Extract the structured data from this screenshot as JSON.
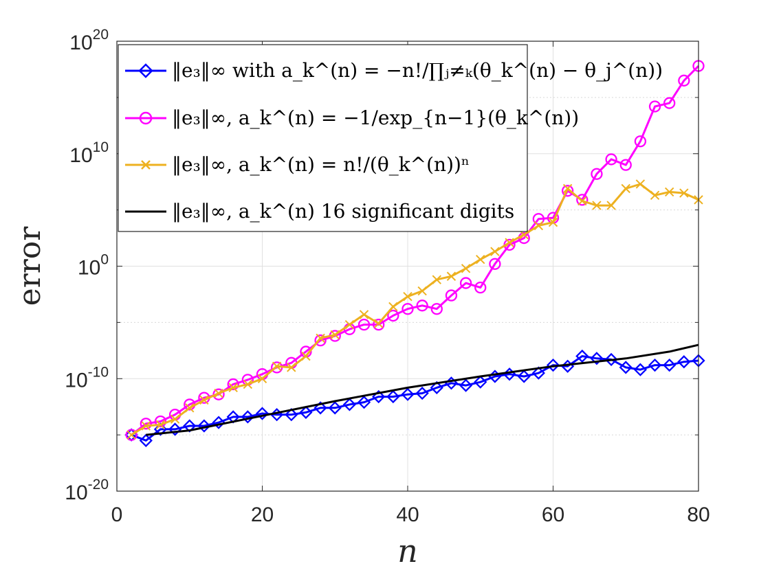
{
  "chart_data": {
    "type": "line",
    "title": "",
    "xlabel": "n",
    "ylabel": "error",
    "xlim": [
      0,
      80
    ],
    "ylim_log10": [
      -20,
      20
    ],
    "y_scale": "log",
    "grid": true,
    "legend_position": "top-left",
    "x_ticks": [
      0,
      20,
      40,
      60,
      80
    ],
    "x_tick_labels": [
      "0",
      "20",
      "40",
      "60",
      "80"
    ],
    "y_ticks_log10": [
      -20,
      -10,
      0,
      10,
      20
    ],
    "y_tick_labels": [
      {
        "base": "10",
        "exp": "-20"
      },
      {
        "base": "10",
        "exp": "-10"
      },
      {
        "base": "10",
        "exp": "0"
      },
      {
        "base": "10",
        "exp": "10"
      },
      {
        "base": "10",
        "exp": "20"
      }
    ],
    "series": [
      {
        "name": "‖e3‖∞ with a_k^(n) = −n!/∏_{j≠k}(θ_k^(n) − θ_j^(n))",
        "color": "#0000ff",
        "marker": "diamond",
        "x": [
          2,
          4,
          6,
          8,
          10,
          12,
          14,
          16,
          18,
          20,
          22,
          24,
          26,
          28,
          30,
          32,
          34,
          36,
          38,
          40,
          42,
          44,
          46,
          48,
          50,
          52,
          54,
          56,
          58,
          60,
          62,
          64,
          66,
          68,
          70,
          72,
          74,
          76,
          78,
          80
        ],
        "log10_y": [
          -15.0,
          -15.5,
          -14.5,
          -14.5,
          -14.2,
          -14.2,
          -13.9,
          -13.4,
          -13.4,
          -13.1,
          -13.2,
          -13.2,
          -13.0,
          -12.6,
          -12.6,
          -12.3,
          -12.1,
          -11.6,
          -11.6,
          -11.4,
          -11.3,
          -10.8,
          -10.4,
          -10.6,
          -10.3,
          -9.8,
          -9.6,
          -9.8,
          -9.5,
          -8.8,
          -8.9,
          -8.0,
          -8.2,
          -8.3,
          -9.0,
          -9.2,
          -8.8,
          -8.8,
          -8.5,
          -8.4
        ]
      },
      {
        "name": "‖e3‖∞, a_k^(n) = −1/exp_{n−1}(θ_k^(n))",
        "color": "#ff00ff",
        "marker": "circle",
        "x": [
          2,
          4,
          6,
          8,
          10,
          12,
          14,
          16,
          18,
          20,
          22,
          24,
          26,
          28,
          30,
          32,
          34,
          36,
          38,
          40,
          42,
          44,
          46,
          48,
          50,
          52,
          54,
          56,
          58,
          60,
          62,
          64,
          66,
          68,
          70,
          72,
          74,
          76,
          78,
          80
        ],
        "log10_y": [
          -15.0,
          -14.0,
          -13.8,
          -13.2,
          -12.3,
          -11.7,
          -11.4,
          -10.5,
          -10.1,
          -9.6,
          -9.0,
          -8.6,
          -7.6,
          -6.6,
          -6.2,
          -5.6,
          -5.2,
          -5.2,
          -4.4,
          -3.8,
          -3.5,
          -3.8,
          -2.6,
          -1.5,
          -1.9,
          0.2,
          1.9,
          2.5,
          4.2,
          4.3,
          6.7,
          5.9,
          8.2,
          9.5,
          9.0,
          11.1,
          14.2,
          14.5,
          16.5,
          17.8
        ]
      },
      {
        "name": "‖e3‖∞, a_k^(n) = n!/(θ_k^(n))^n",
        "color": "#edb120",
        "marker": "x",
        "x": [
          2,
          4,
          6,
          8,
          10,
          12,
          14,
          16,
          18,
          20,
          22,
          24,
          26,
          28,
          30,
          32,
          34,
          36,
          38,
          40,
          42,
          44,
          46,
          48,
          50,
          52,
          54,
          56,
          58,
          60,
          62,
          64,
          66,
          68,
          70,
          72,
          74,
          76,
          78,
          80
        ],
        "log10_y": [
          -15.0,
          -14.2,
          -14.1,
          -13.6,
          -12.6,
          -11.9,
          -11.3,
          -10.8,
          -10.5,
          -10.0,
          -8.9,
          -9.0,
          -8.0,
          -6.4,
          -6.1,
          -5.2,
          -4.3,
          -5.1,
          -3.6,
          -2.7,
          -2.2,
          -1.2,
          -0.9,
          -0.2,
          0.6,
          1.3,
          2.1,
          2.8,
          3.6,
          3.9,
          6.9,
          5.8,
          5.4,
          5.4,
          6.9,
          7.3,
          6.3,
          6.6,
          6.5,
          5.9
        ]
      },
      {
        "name": "‖e3‖∞, a_k^(n) 16 significant digits",
        "color": "#000000",
        "marker": "none",
        "x": [
          4,
          10,
          20,
          30,
          40,
          50,
          60,
          70,
          76,
          80
        ],
        "log10_y": [
          -15.0,
          -14.6,
          -13.3,
          -12.0,
          -10.8,
          -9.8,
          -8.9,
          -8.2,
          -7.6,
          -7.0
        ]
      }
    ]
  },
  "legend": {
    "entries": [
      {
        "norm": "‖e₃‖∞",
        "rest": " with a_k^(n) = −n!/∏ⱼ≠ₖ(θ_k^(n) − θ_j^(n))"
      },
      {
        "norm": "‖e₃‖∞,",
        "rest": " a_k^(n) = −1/exp_{n−1}(θ_k^(n))"
      },
      {
        "norm": "‖e₃‖∞,",
        "rest": " a_k^(n) = n!/(θ_k^(n))ⁿ"
      },
      {
        "norm": "‖e₃‖∞,",
        "rest": " a_k^(n) 16 significant digits"
      }
    ]
  }
}
